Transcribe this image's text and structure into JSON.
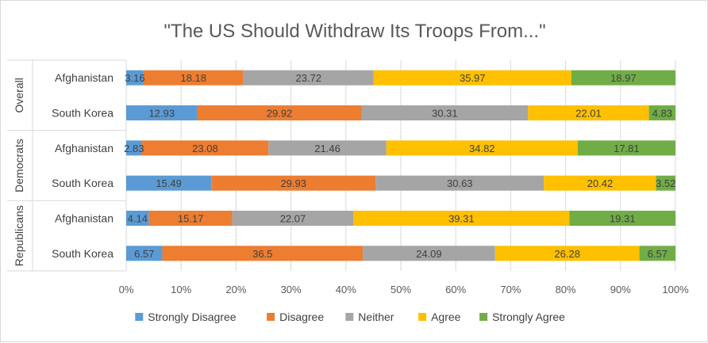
{
  "chart_data": {
    "type": "bar",
    "orientation": "horizontal",
    "stacked": "100%",
    "title": "\"The US Should Withdraw  Its Troops From...\"",
    "groups": [
      "Overall",
      "Democrats",
      "Republicans"
    ],
    "categories": [
      "Afghanistan",
      "South Korea",
      "Afghanistan",
      "South Korea",
      "Afghanistan",
      "South Korea"
    ],
    "x_ticks": [
      "0%",
      "10%",
      "20%",
      "30%",
      "40%",
      "50%",
      "60%",
      "70%",
      "80%",
      "90%",
      "100%"
    ],
    "xlim": [
      0,
      100
    ],
    "grid": true,
    "legend_position": "bottom",
    "series": [
      {
        "name": "Strongly Disagree",
        "color": "#5b9bd5",
        "values": [
          3.16,
          12.93,
          2.83,
          15.49,
          4.14,
          6.57
        ]
      },
      {
        "name": "Disagree",
        "color": "#ed7d31",
        "values": [
          18.18,
          29.92,
          23.08,
          29.93,
          15.17,
          36.5
        ]
      },
      {
        "name": "Neither",
        "color": "#a5a5a5",
        "values": [
          23.72,
          30.31,
          21.46,
          30.63,
          22.07,
          24.09
        ]
      },
      {
        "name": "Agree",
        "color": "#ffc000",
        "values": [
          35.97,
          22.01,
          34.82,
          20.42,
          39.31,
          26.28
        ]
      },
      {
        "name": "Strongly Agree",
        "color": "#70ad47",
        "values": [
          18.97,
          4.83,
          17.81,
          3.52,
          19.31,
          6.57
        ]
      }
    ]
  }
}
